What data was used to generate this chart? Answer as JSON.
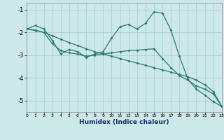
{
  "xlabel": "Humidex (Indice chaleur)",
  "bg_color": "#cce8e8",
  "grid_color": "#aacfcf",
  "line_color": "#2a7a6a",
  "xlim": [
    0,
    23
  ],
  "ylim": [
    -5.5,
    -0.7
  ],
  "yticks": [
    -1,
    -2,
    -3,
    -4,
    -5
  ],
  "xticks": [
    0,
    1,
    2,
    3,
    4,
    5,
    6,
    7,
    8,
    9,
    10,
    11,
    12,
    13,
    14,
    15,
    16,
    17,
    18,
    19,
    20,
    21,
    22,
    23
  ],
  "x": [
    0,
    1,
    2,
    3,
    4,
    5,
    6,
    7,
    8,
    9,
    10,
    11,
    12,
    13,
    14,
    15,
    16,
    17,
    18,
    19,
    20,
    21,
    22,
    23
  ],
  "line1": [
    -1.85,
    -1.7,
    -1.85,
    -2.35,
    -2.95,
    -2.75,
    -2.85,
    -3.1,
    -2.95,
    -2.85,
    -2.25,
    -1.75,
    -1.65,
    -1.85,
    -1.6,
    -1.1,
    -1.15,
    -1.9,
    -3.05,
    -4.05,
    -4.5,
    -4.75,
    -5.05,
    -5.25
  ],
  "line2": [
    -1.85,
    -1.9,
    -2.0,
    -2.15,
    -2.3,
    -2.45,
    -2.58,
    -2.72,
    -2.85,
    -2.95,
    -3.05,
    -3.15,
    -3.25,
    -3.35,
    -3.45,
    -3.55,
    -3.65,
    -3.75,
    -3.85,
    -3.95,
    -4.1,
    -4.3,
    -4.6,
    -5.25
  ],
  "line3": [
    -1.85,
    -1.92,
    -2.0,
    -2.5,
    -2.8,
    -2.9,
    -2.95,
    -3.05,
    -3.0,
    -2.95,
    -2.9,
    -2.85,
    -2.8,
    -2.78,
    -2.75,
    -2.72,
    -3.15,
    -3.55,
    -3.9,
    -4.1,
    -4.35,
    -4.5,
    -4.7,
    -5.25
  ]
}
